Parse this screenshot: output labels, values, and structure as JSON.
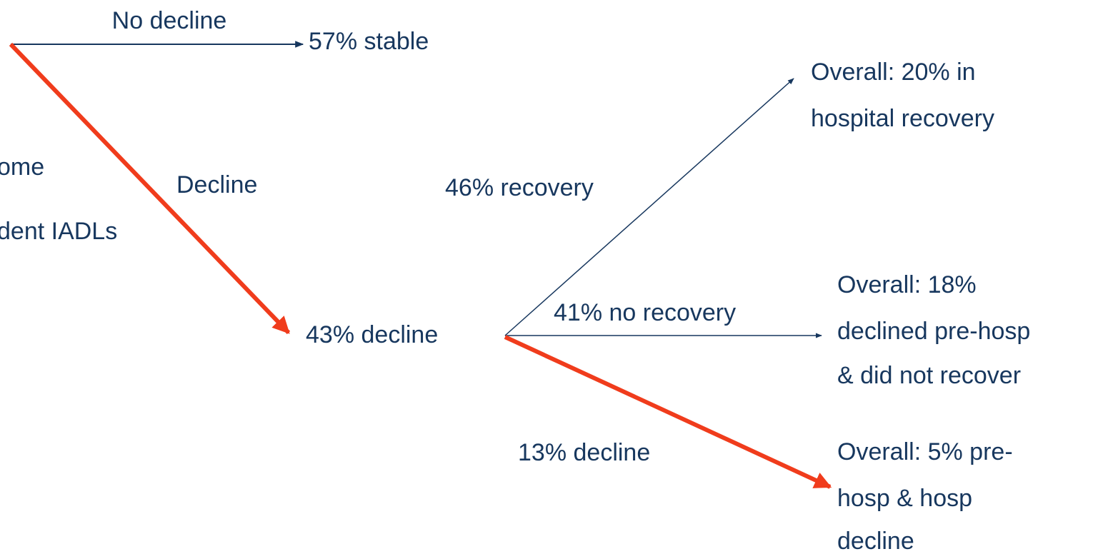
{
  "root": {
    "label_lines": [
      "ome",
      "dent IADLs"
    ]
  },
  "edges": [
    {
      "label": "No decline"
    },
    {
      "label": "Decline"
    },
    {
      "label": "46% recovery"
    },
    {
      "label": "41% no recovery"
    },
    {
      "label": "13% decline"
    }
  ],
  "nodes": [
    {
      "label_lines": [
        "57% stable"
      ]
    },
    {
      "label_lines": [
        "43% decline"
      ]
    },
    {
      "label_lines": [
        "Overall: 20% in",
        "hospital recovery"
      ]
    },
    {
      "label_lines": [
        "Overall: 18%",
        "declined pre-hosp",
        "& did not recover"
      ]
    },
    {
      "label_lines": [
        "Overall: 5% pre-",
        "hosp & hosp",
        "decline"
      ]
    }
  ]
}
